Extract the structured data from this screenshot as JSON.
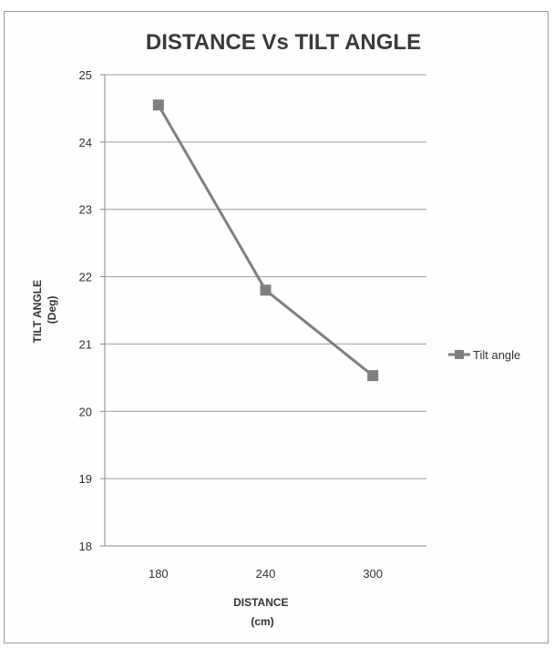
{
  "chart_data": {
    "type": "line",
    "title": "DISTANCE Vs TILT ANGLE",
    "xlabel_lines": [
      "DISTANCE",
      "(cm)"
    ],
    "ylabel_lines": [
      "TILT ANGLE",
      "(Deg)"
    ],
    "categories": [
      "180",
      "240",
      "300"
    ],
    "ylim": [
      18,
      25
    ],
    "yticks": [
      "18",
      "19",
      "20",
      "21",
      "22",
      "23",
      "24",
      "25"
    ],
    "grid": true,
    "legend_position": "right",
    "series": [
      {
        "name": "Tilt angle",
        "values": [
          24.55,
          21.8,
          20.53
        ],
        "color": "#7f7f7f",
        "marker": "square"
      }
    ]
  }
}
